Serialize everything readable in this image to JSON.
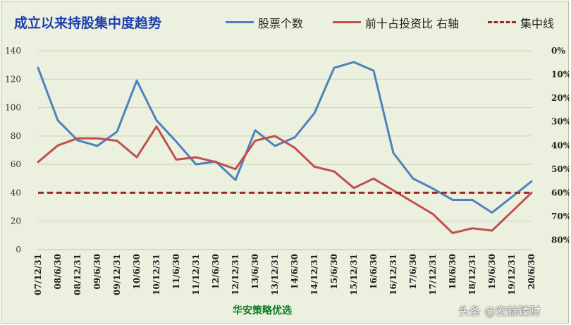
{
  "chart_data": {
    "type": "line",
    "title": "成立以来持股集中度趋势",
    "source_label": "华安策略优选",
    "watermark": "头条 @宏赫臻财",
    "categories": [
      "07/12/31",
      "08/6/30",
      "08/12/31",
      "09/6/30",
      "09/12/31",
      "10/6/30",
      "10/12/31",
      "11/6/30",
      "11/12/31",
      "12/6/30",
      "12/12/31",
      "13/6/30",
      "13/12/31",
      "14/6/30",
      "14/12/31",
      "15/6/30",
      "15/12/31",
      "16/6/30",
      "16/12/31",
      "17/6/30",
      "17/12/31",
      "18/6/30",
      "18/12/31",
      "19/6/30",
      "19/12/31",
      "20/6/30"
    ],
    "y_left": {
      "range": [
        0,
        140
      ],
      "ticks": [
        "0",
        "20",
        "40",
        "60",
        "80",
        "100",
        "120",
        "140"
      ]
    },
    "y_right": {
      "range": [
        0,
        0.84
      ],
      "reversed": true,
      "ticks": [
        "0%",
        "10%",
        "20%",
        "30%",
        "40%",
        "50%",
        "60%",
        "70%",
        "80%"
      ]
    },
    "grid": "horizontal",
    "legend_position": "top",
    "series": [
      {
        "name": "股票个数",
        "axis": "left",
        "color": "#4f81bd",
        "style": "solid",
        "values": [
          128,
          91,
          77,
          73,
          83,
          119,
          91,
          76,
          60,
          62,
          49,
          84,
          73,
          79,
          96,
          128,
          132,
          126,
          68,
          50,
          43,
          35,
          35,
          26,
          37,
          48
        ]
      },
      {
        "name": "前十占投资比 右轴",
        "axis": "right",
        "color": "#c0504d",
        "style": "solid",
        "values": [
          0.47,
          0.4,
          0.37,
          0.37,
          0.38,
          0.45,
          0.32,
          0.46,
          0.45,
          0.47,
          0.5,
          0.38,
          0.36,
          0.41,
          0.49,
          0.51,
          0.58,
          0.54,
          0.59,
          0.64,
          0.69,
          0.77,
          0.75,
          0.76,
          0.68,
          0.6
        ]
      },
      {
        "name": "集中线",
        "axis": "left",
        "color": "#9c2a2a",
        "style": "dashed",
        "values": [
          40,
          40,
          40,
          40,
          40,
          40,
          40,
          40,
          40,
          40,
          40,
          40,
          40,
          40,
          40,
          40,
          40,
          40,
          40,
          40,
          40,
          40,
          40,
          40,
          40,
          40
        ]
      }
    ]
  }
}
